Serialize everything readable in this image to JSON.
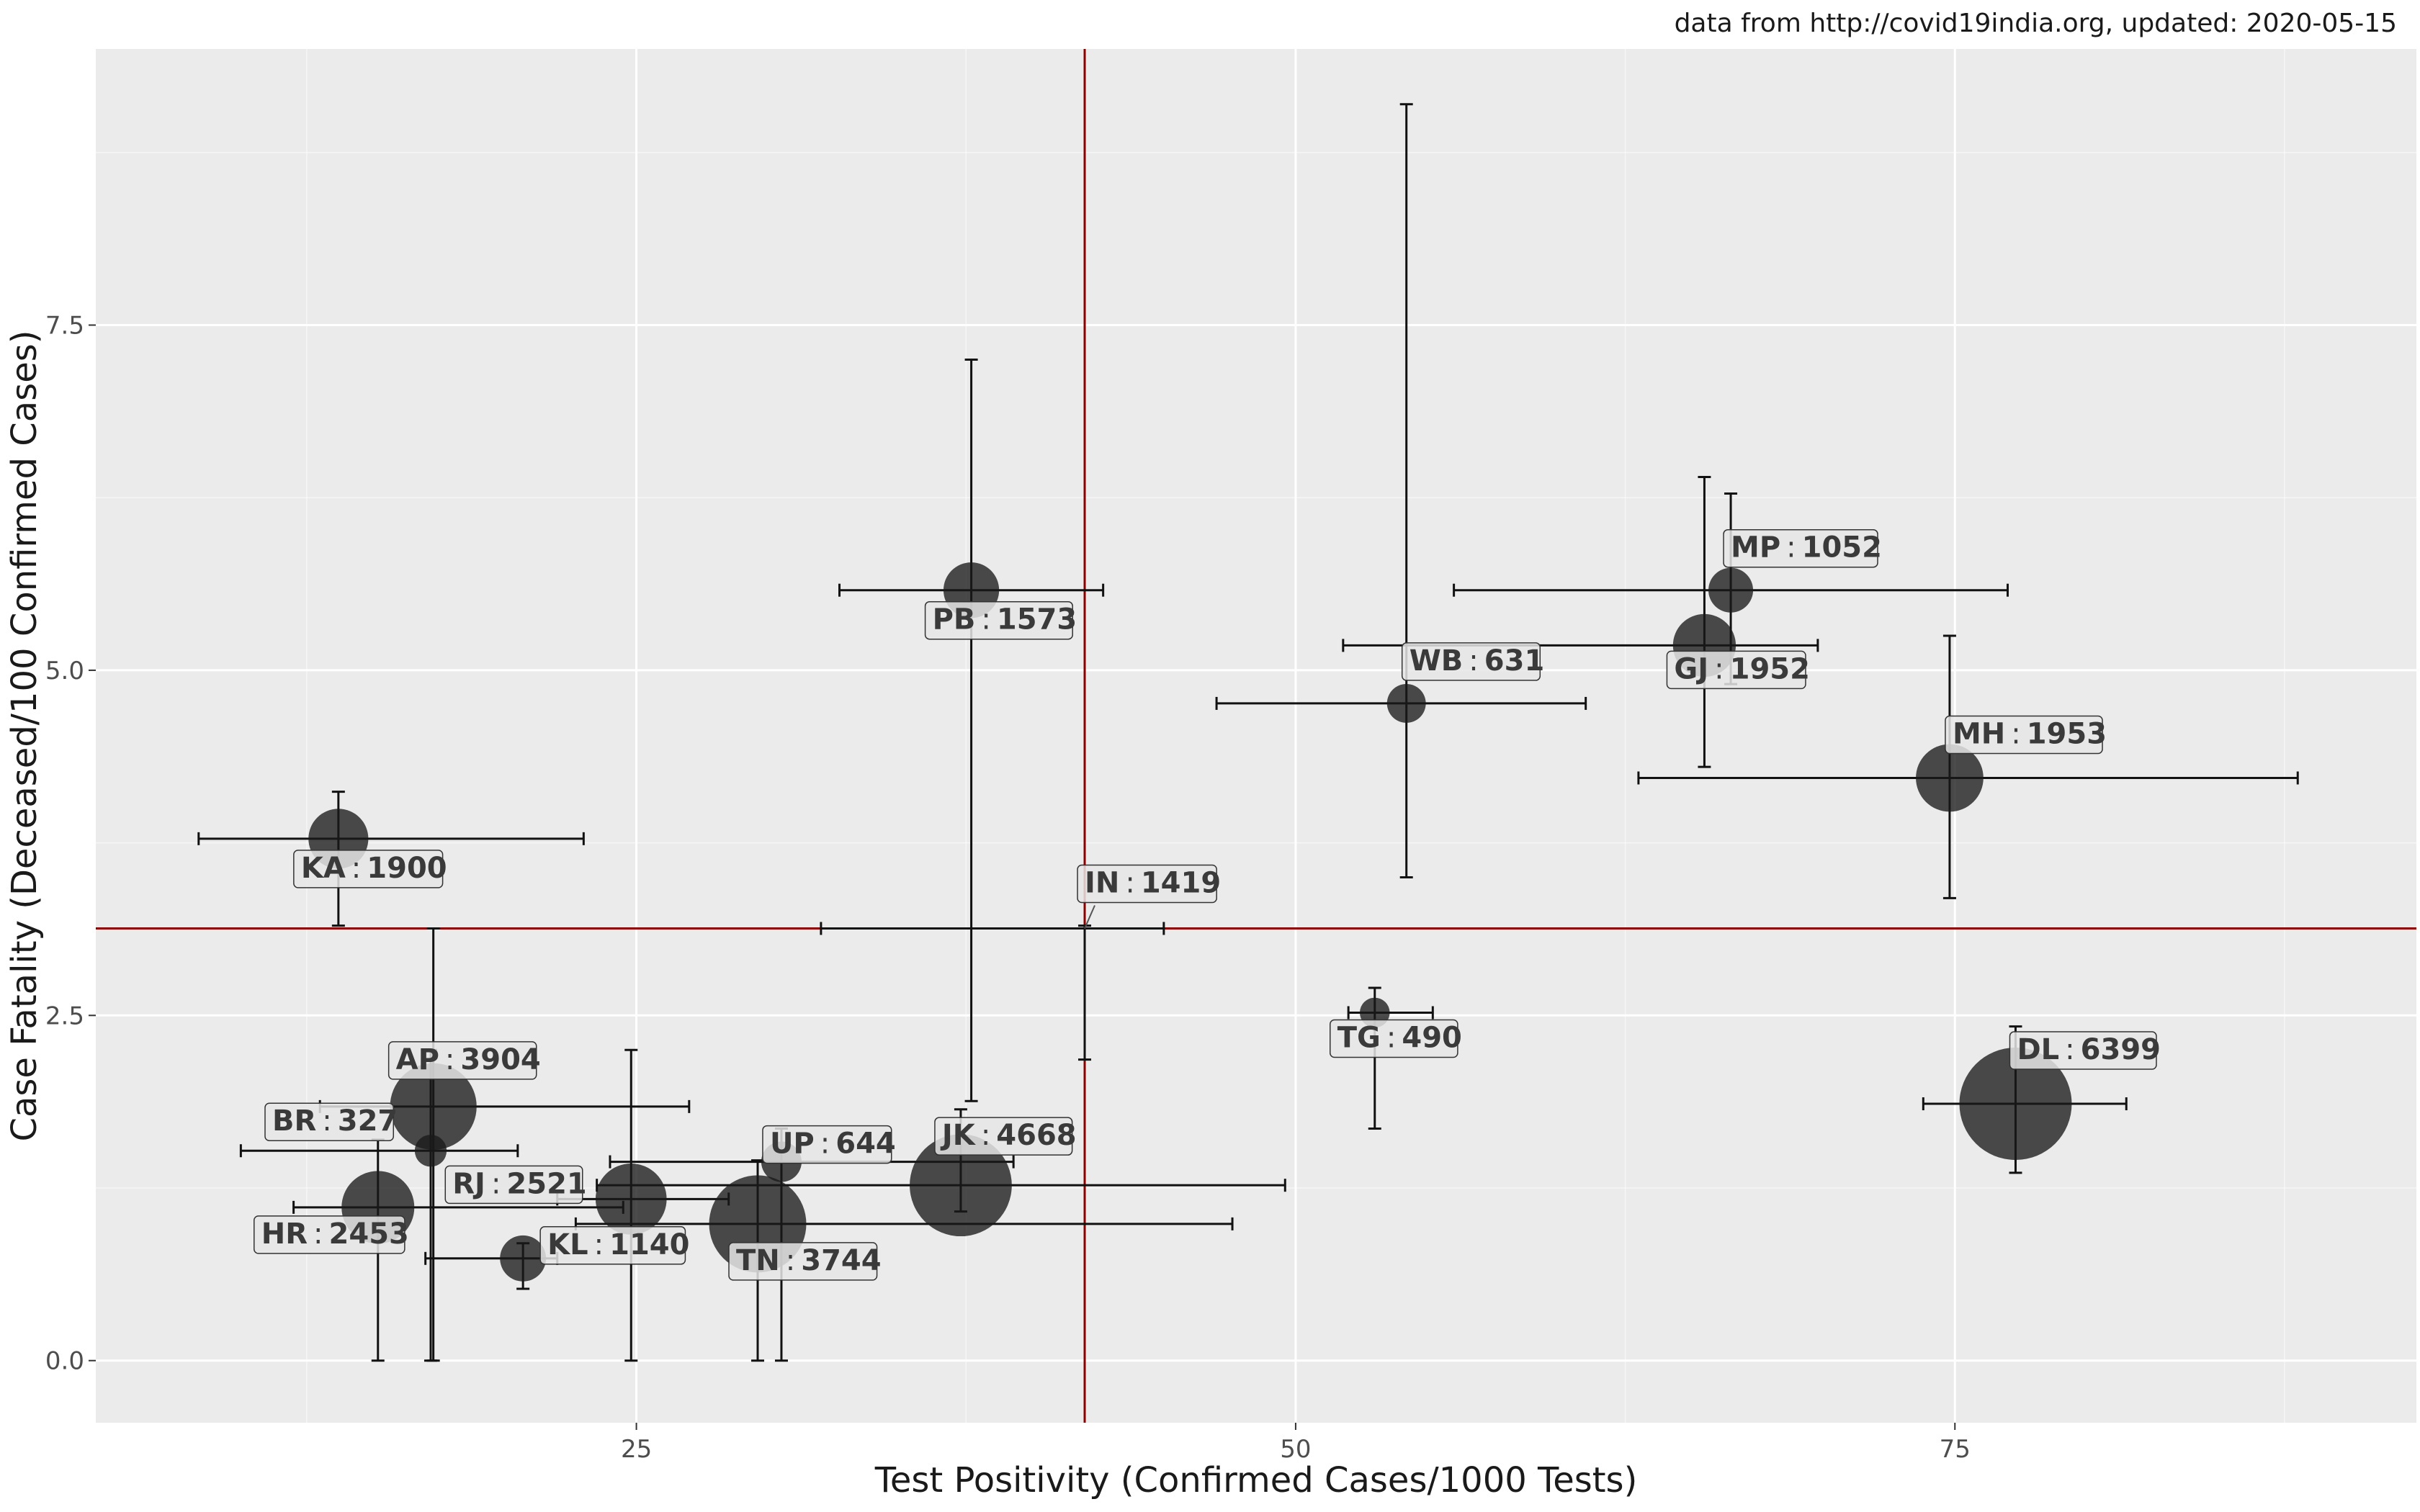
{
  "caption": "data from http://covid19india.org, updated: 2020-05-15",
  "colors": {
    "panel": "#ebebeb",
    "grid_major": "#ffffff",
    "reference_line": "#8b0000",
    "point": "#1a1a1a",
    "label_bg": "#e6e6e6",
    "label_border": "#333333"
  },
  "chart_data": {
    "type": "scatter",
    "xlabel": "Test Positivity (Confirmed Cases/1000 Tests)",
    "ylabel": "Case Fatality (Deceased/100 Confirmed Cases)",
    "xlim": [
      4.5,
      92.5
    ],
    "ylim": [
      -0.45,
      9.5
    ],
    "x_ticks": [
      25,
      50,
      75
    ],
    "x_tick_labels": [
      "25",
      "50",
      "75"
    ],
    "y_ticks": [
      0,
      2.5,
      5,
      7.5
    ],
    "y_tick_labels": [
      "0.0",
      "2.5",
      "5.0",
      "7.5"
    ],
    "grid": true,
    "reference_lines": {
      "x": 42.0,
      "y": 3.13
    },
    "label_separator": ":",
    "points": [
      {
        "code": "KA",
        "number": "1900",
        "x": 13.7,
        "y": 3.78,
        "xerr": [
          8.4,
          23.0
        ],
        "yerr": [
          3.15,
          4.12
        ],
        "size": 0.26
      },
      {
        "code": "PB",
        "number": "1573",
        "x": 37.7,
        "y": 5.58,
        "xerr": [
          32.7,
          42.7
        ],
        "yerr": [
          1.88,
          7.25
        ],
        "size": 0.22
      },
      {
        "code": "IN",
        "number": "1419",
        "x": 42.0,
        "y": 3.13,
        "xerr": [
          32.0,
          45.0
        ],
        "yerr": [
          2.18,
          3.15
        ],
        "size": 0.0
      },
      {
        "code": "WB",
        "number": "631",
        "x": 54.2,
        "y": 4.76,
        "xerr": [
          47.0,
          61.0
        ],
        "yerr": [
          3.5,
          9.1
        ],
        "size": 0.09
      },
      {
        "code": "GJ",
        "number": "1952",
        "x": 65.5,
        "y": 5.18,
        "xerr": [
          51.8,
          69.8
        ],
        "yerr": [
          4.3,
          6.4
        ],
        "size": 0.29
      },
      {
        "code": "MP",
        "number": "1052",
        "x": 66.5,
        "y": 5.58,
        "xerr": [
          56.0,
          77.0
        ],
        "yerr": [
          4.9,
          6.28
        ],
        "size": 0.13
      },
      {
        "code": "MH",
        "number": "1953",
        "x": 74.8,
        "y": 4.22,
        "xerr": [
          63.0,
          88.0
        ],
        "yerr": [
          3.35,
          5.25
        ],
        "size": 0.34
      },
      {
        "code": "TG",
        "number": "490",
        "x": 53.0,
        "y": 2.52,
        "xerr": [
          52.0,
          55.2
        ],
        "yerr": [
          1.68,
          2.7
        ],
        "size": 0.04
      },
      {
        "code": "DL",
        "number": "6399",
        "x": 77.3,
        "y": 1.86,
        "xerr": [
          73.8,
          81.5
        ],
        "yerr": [
          1.36,
          2.42
        ],
        "size": 1.0
      },
      {
        "code": "AP",
        "number": "3904",
        "x": 17.3,
        "y": 1.84,
        "xerr": [
          13.0,
          27.0
        ],
        "yerr": [
          0.0,
          3.13
        ],
        "size": 0.58
      },
      {
        "code": "BR",
        "number": "327",
        "x": 17.2,
        "y": 1.52,
        "xerr": [
          10.0,
          20.5
        ],
        "yerr": [
          0.0,
          2.25
        ],
        "size": 0.05
      },
      {
        "code": "RJ",
        "number": "2521",
        "x": 24.8,
        "y": 1.17,
        "xerr": [
          22.0,
          28.5
        ],
        "yerr": [
          0.0,
          2.25
        ],
        "size": 0.38
      },
      {
        "code": "UP",
        "number": "644",
        "x": 30.5,
        "y": 1.44,
        "xerr": [
          24.0,
          39.3
        ],
        "yerr": [
          0.0,
          1.68
        ],
        "size": 0.1
      },
      {
        "code": "JK",
        "number": "4668",
        "x": 37.3,
        "y": 1.27,
        "xerr": [
          23.5,
          49.6
        ],
        "yerr": [
          1.08,
          1.82
        ],
        "size": 0.82
      },
      {
        "code": "HR",
        "number": "2453",
        "x": 15.2,
        "y": 1.11,
        "xerr": [
          12.0,
          24.5
        ],
        "yerr": [
          0.0,
          1.6
        ],
        "size": 0.4
      },
      {
        "code": "KL",
        "number": "1140",
        "x": 20.7,
        "y": 0.74,
        "xerr": [
          17.0,
          22.0
        ],
        "yerr": [
          0.52,
          0.85
        ],
        "size": 0.14
      },
      {
        "code": "TN",
        "number": "3744",
        "x": 29.6,
        "y": 0.99,
        "xerr": [
          22.7,
          47.6
        ],
        "yerr": [
          0.0,
          1.45
        ],
        "size": 0.74
      }
    ]
  }
}
